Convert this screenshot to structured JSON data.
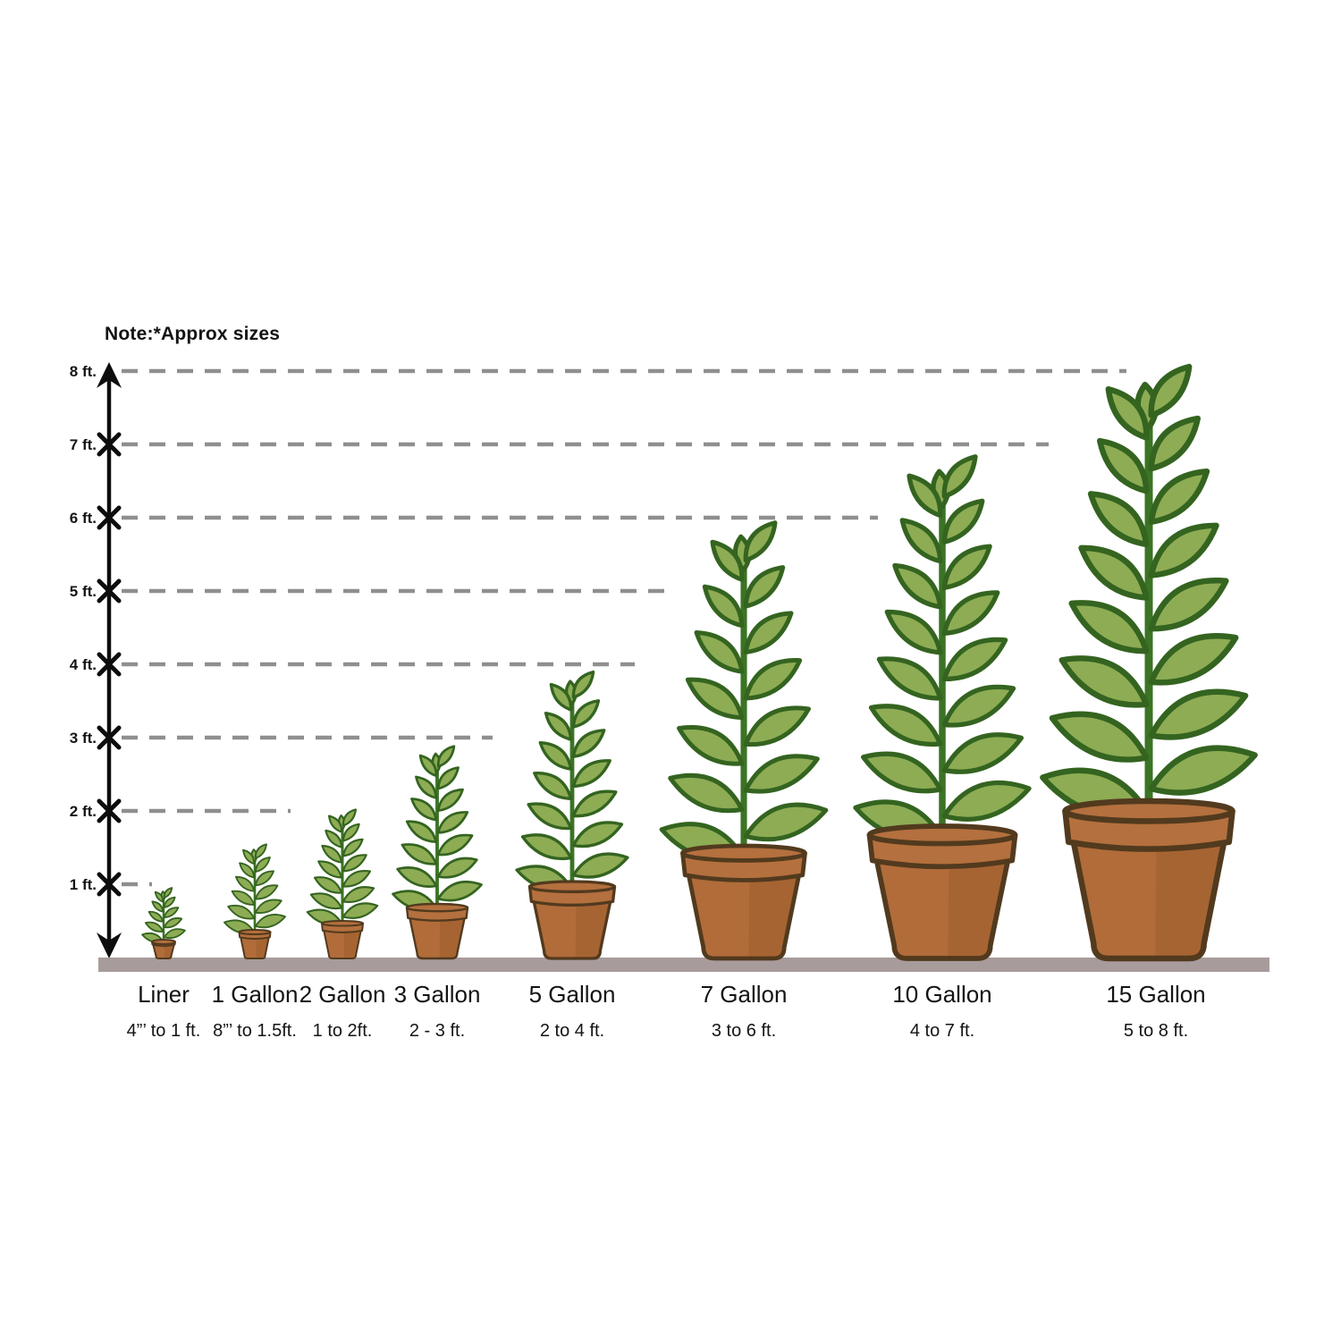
{
  "chart_data": {
    "type": "bar",
    "title": "",
    "note": "Note:*Approx sizes",
    "categories": [
      "Liner",
      "1 Gallon",
      "2 Gallon",
      "3 Gallon",
      "5 Gallon",
      "7 Gallon",
      "10 Gallon",
      "15 Gallon"
    ],
    "size_labels": [
      "4”’ to 1 ft.",
      "8”’ to 1.5ft.",
      "1 to 2ft.",
      "2 - 3 ft.",
      "2 to 4 ft.",
      "3 to 6 ft.",
      "4 to 7 ft.",
      "5 to 8 ft."
    ],
    "heights_ft": [
      [
        0.33,
        1
      ],
      [
        0.67,
        1.5
      ],
      [
        1,
        2
      ],
      [
        2,
        3
      ],
      [
        2,
        4
      ],
      [
        3,
        6
      ],
      [
        4,
        7
      ],
      [
        5,
        8
      ]
    ],
    "y_ticks": [
      "8 ft.",
      "7 ft.",
      "6 ft.",
      "5 ft.",
      "4 ft.",
      "3 ft.",
      "2 ft.",
      "1 ft."
    ],
    "ylim": [
      0,
      8
    ],
    "grid": "dashed horizontal reference lines",
    "legend": "none",
    "colors": {
      "leaf": "#8dac54",
      "leaf_outline": "#346420",
      "stem": "#3b7424",
      "pot": "#b16c3a",
      "pot_shade": "#9c5c2d",
      "pot_rim": "#b4703e",
      "pot_outline": "#523a1e",
      "ground": "#a89b9b",
      "dash": "#8f8f8f",
      "axis": "#0d0d0d",
      "text": "#141414"
    }
  }
}
